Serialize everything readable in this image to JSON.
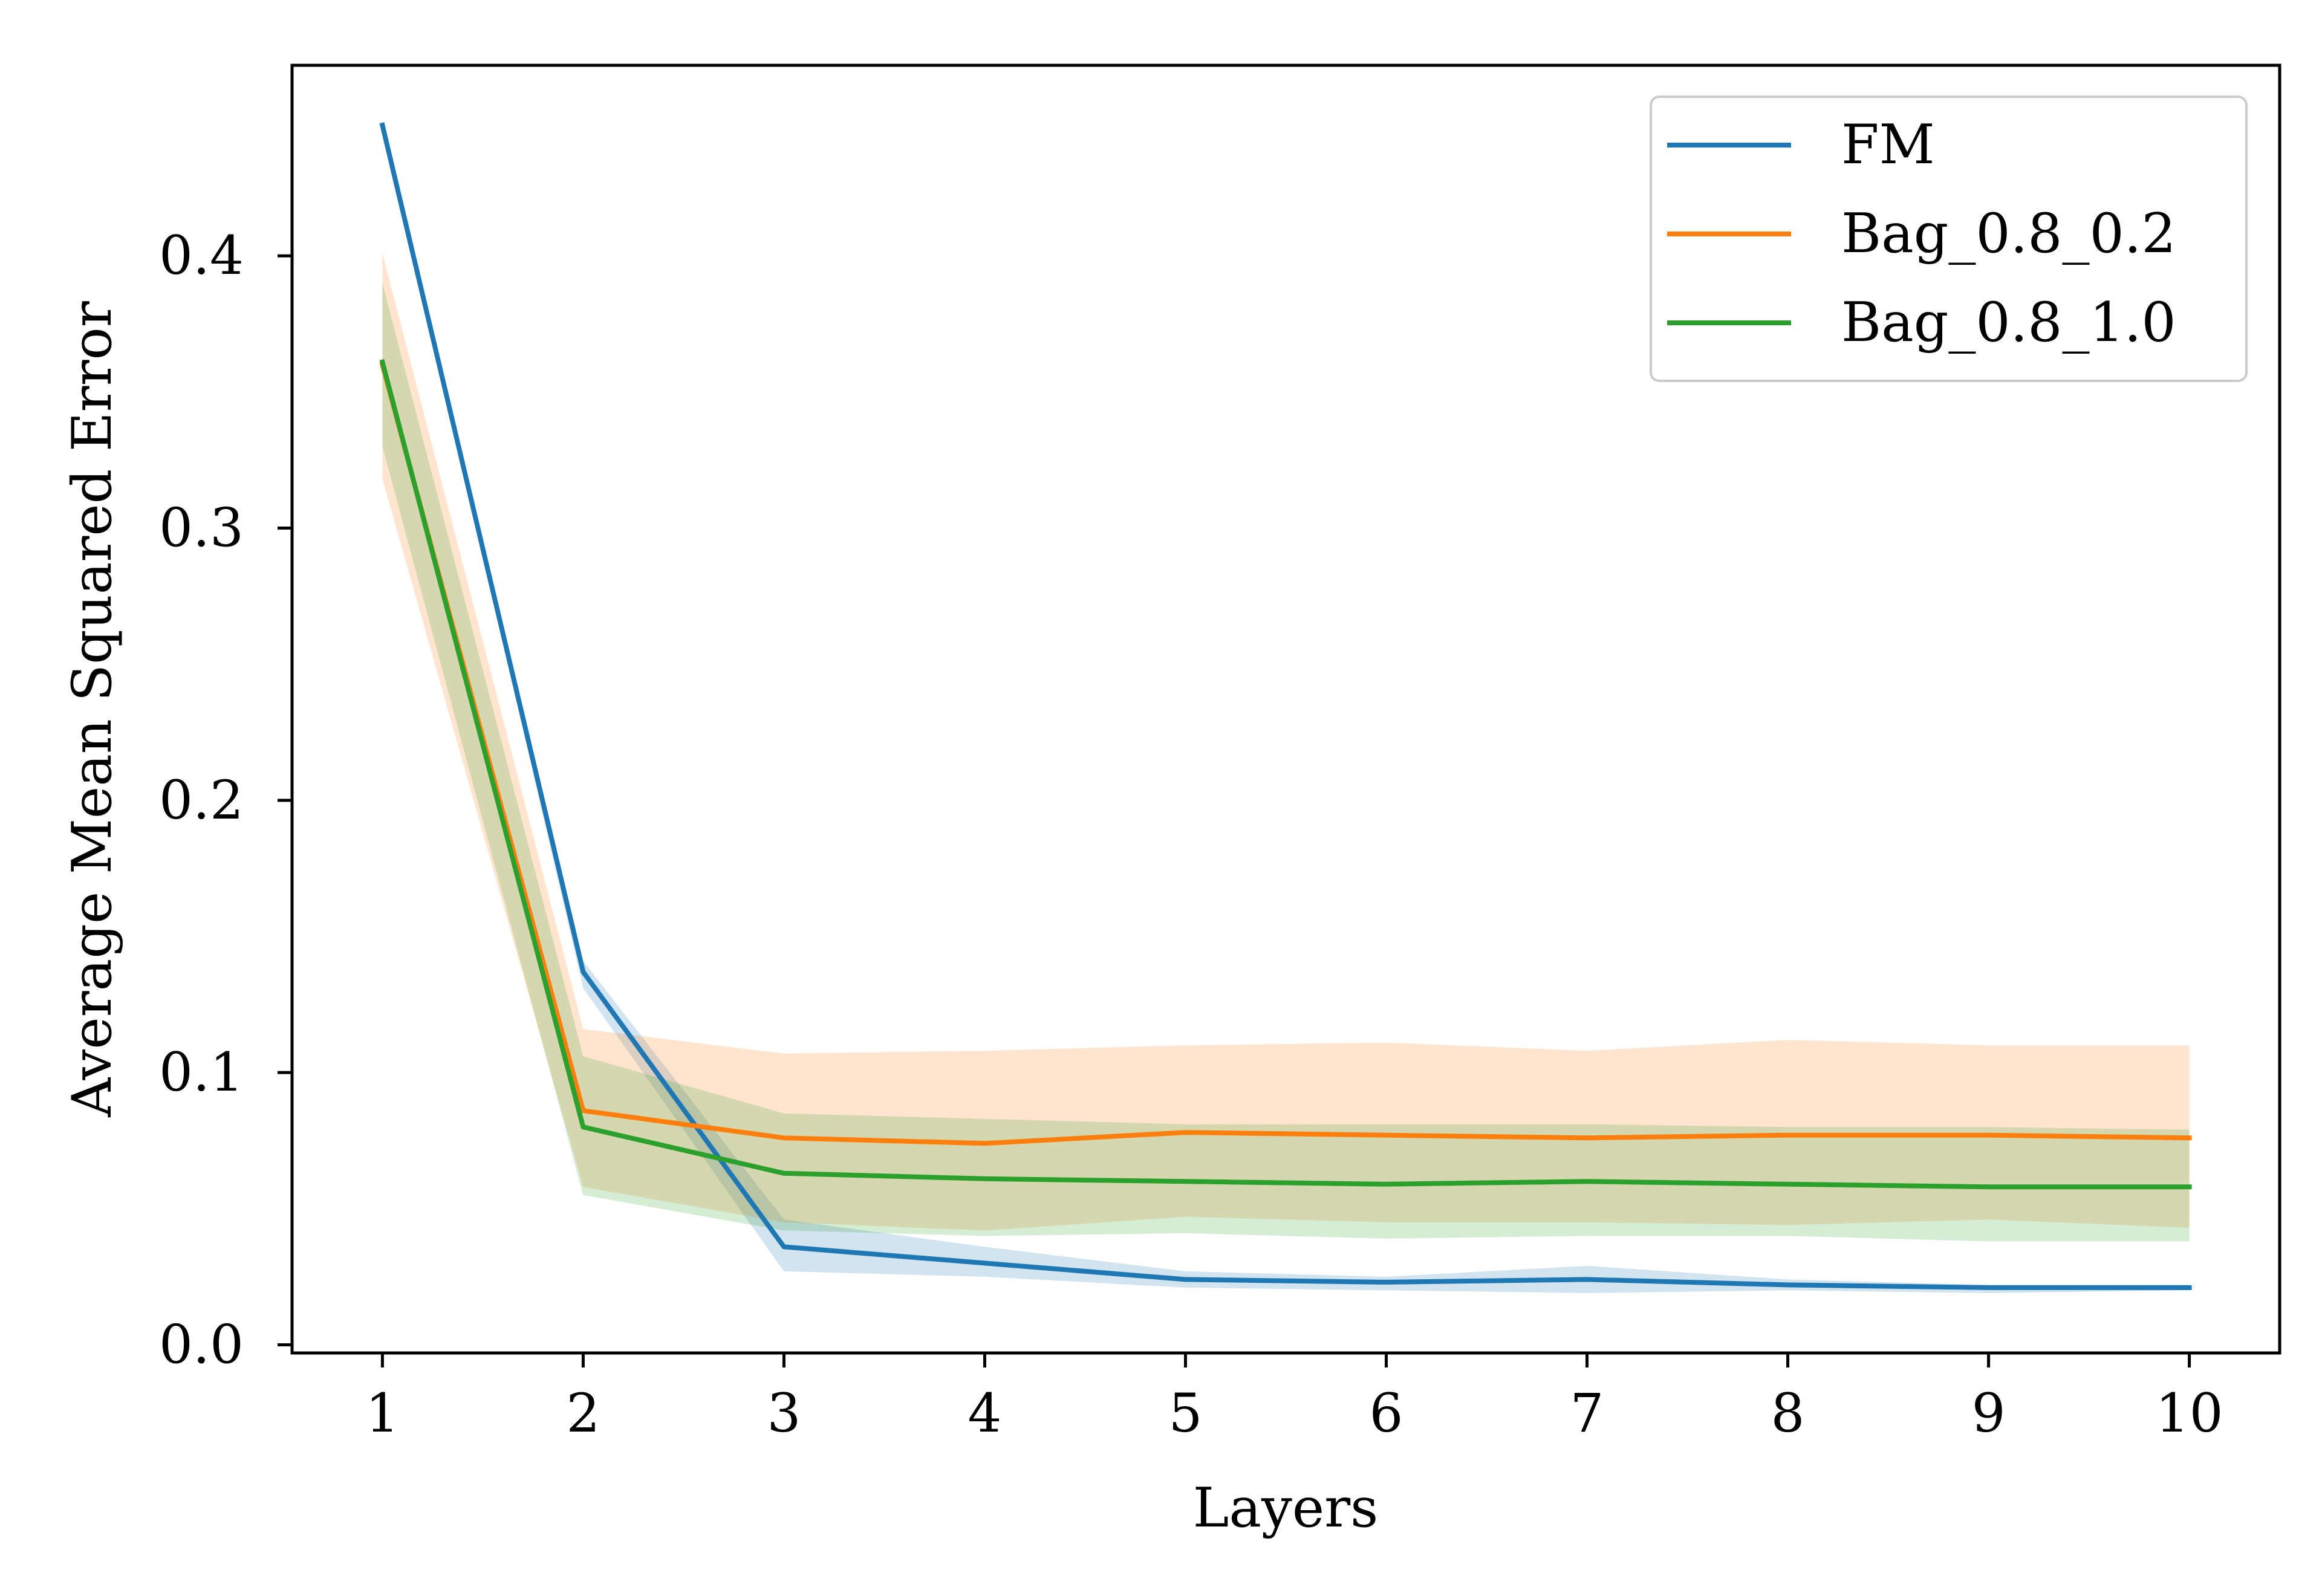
{
  "chart_data": {
    "type": "line",
    "title": "",
    "xlabel": "Layers",
    "ylabel": "Average Mean Squared Error",
    "x": [
      1,
      2,
      3,
      4,
      5,
      6,
      7,
      8,
      9,
      10
    ],
    "xticks": [
      1,
      2,
      3,
      4,
      5,
      6,
      7,
      8,
      9,
      10
    ],
    "xtick_labels": [
      "1",
      "2",
      "3",
      "4",
      "5",
      "6",
      "7",
      "8",
      "9",
      "10"
    ],
    "yticks": [
      0.0,
      0.1,
      0.2,
      0.3,
      0.4
    ],
    "ytick_labels": [
      "0.0",
      "0.1",
      "0.2",
      "0.3",
      "0.4"
    ],
    "xlim": [
      0.55,
      10.45
    ],
    "ylim": [
      -0.003,
      0.47
    ],
    "grid": false,
    "legend_position": "top-right",
    "series": [
      {
        "name": "FM",
        "color": "#1f77b4",
        "values": [
          0.448,
          0.137,
          0.036,
          0.03,
          0.024,
          0.023,
          0.024,
          0.022,
          0.021,
          0.021
        ],
        "band_lower": [
          0.448,
          0.131,
          0.027,
          0.025,
          0.021,
          0.02,
          0.019,
          0.02,
          0.019,
          0.02
        ],
        "band_upper": [
          0.448,
          0.141,
          0.046,
          0.036,
          0.027,
          0.025,
          0.029,
          0.024,
          0.022,
          0.022
        ]
      },
      {
        "name": "Bag_0.8_0.2",
        "color": "#ff7f0e",
        "values": [
          0.36,
          0.086,
          0.076,
          0.074,
          0.078,
          0.077,
          0.076,
          0.077,
          0.077,
          0.076
        ],
        "band_lower": [
          0.318,
          0.058,
          0.045,
          0.042,
          0.047,
          0.045,
          0.045,
          0.044,
          0.046,
          0.043
        ],
        "band_upper": [
          0.401,
          0.116,
          0.107,
          0.108,
          0.11,
          0.111,
          0.108,
          0.112,
          0.11,
          0.11
        ]
      },
      {
        "name": "Bag_0.8_1.0",
        "color": "#2ca02c",
        "values": [
          0.361,
          0.08,
          0.063,
          0.061,
          0.06,
          0.059,
          0.06,
          0.059,
          0.058,
          0.058
        ],
        "band_lower": [
          0.33,
          0.055,
          0.042,
          0.04,
          0.041,
          0.039,
          0.04,
          0.04,
          0.038,
          0.038
        ],
        "band_upper": [
          0.39,
          0.106,
          0.085,
          0.083,
          0.081,
          0.081,
          0.081,
          0.08,
          0.08,
          0.079
        ]
      }
    ]
  }
}
